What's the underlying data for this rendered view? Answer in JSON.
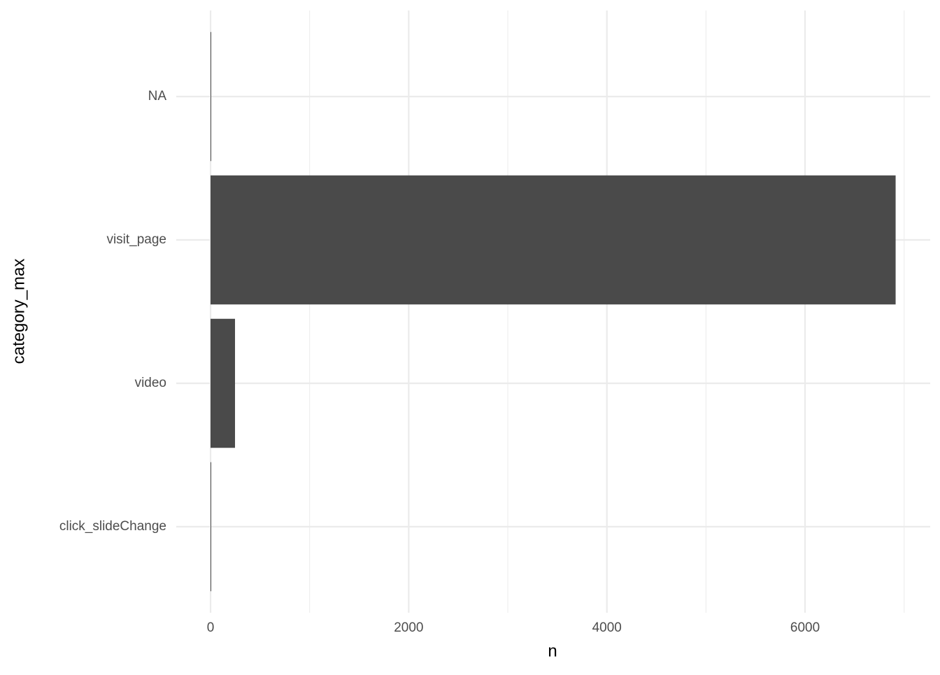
{
  "chart_data": {
    "type": "barh",
    "x_label": "n",
    "y_label": "category_max",
    "categories": [
      "click_slideChange",
      "video",
      "visit_page",
      "NA"
    ],
    "values": [
      4,
      247,
      6914,
      4
    ],
    "color": "#4a4a4a",
    "xlim": [
      -346,
      7263
    ],
    "xticks": [
      0,
      2000,
      4000,
      6000
    ],
    "xminor_ticks": [
      1000,
      3000,
      5000,
      7000
    ],
    "grid": true
  }
}
